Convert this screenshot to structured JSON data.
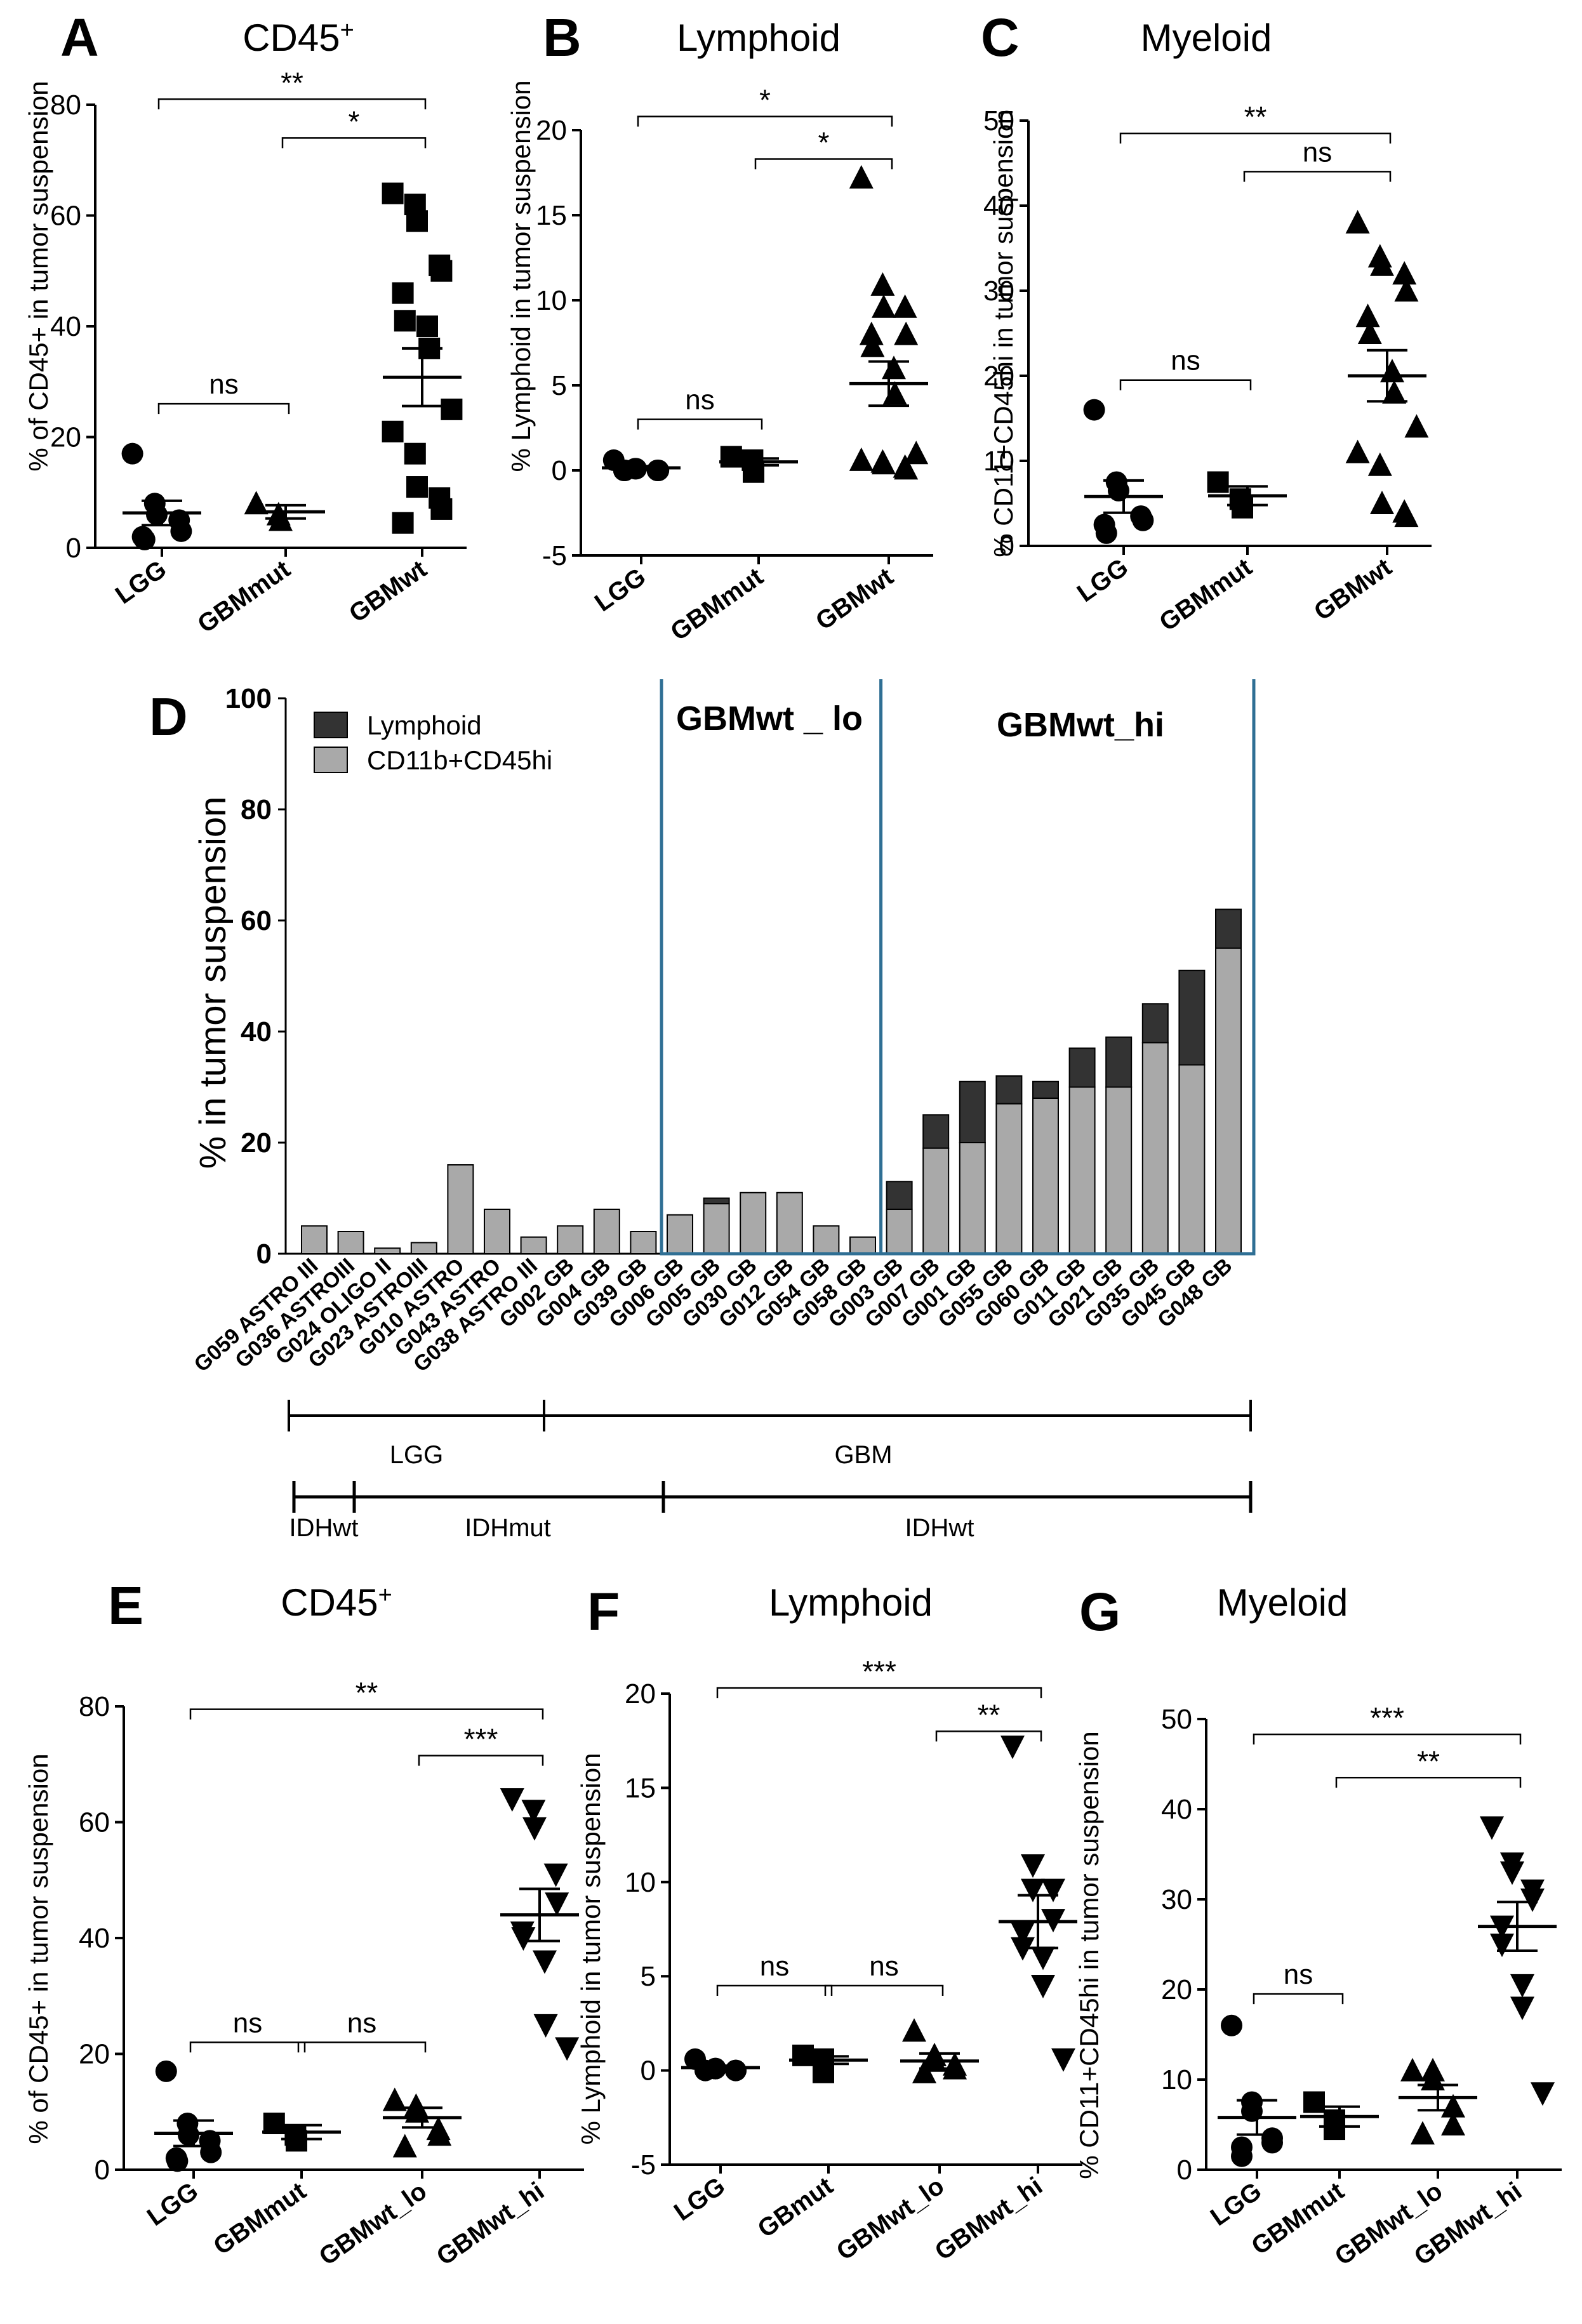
{
  "panels": [
    {
      "letter": "A",
      "title": "CD45",
      "title_sup": "+",
      "ylabel": "% of CD45+ in tumor suspension",
      "ylim": [
        0,
        80
      ],
      "yticks": [
        "0",
        "20",
        "40",
        "60",
        "80"
      ],
      "groups": [
        {
          "label": "LGG",
          "marker": "circle",
          "mean": 6.3,
          "sem": 2.2,
          "values": [
            17,
            8,
            6,
            5,
            3,
            2,
            1.5
          ]
        },
        {
          "label": "GBMmut",
          "marker": "triangle",
          "mean": 6.5,
          "sem": 1.2,
          "values": [
            8,
            6,
            5
          ]
        },
        {
          "label": "GBMwt",
          "marker": "square",
          "mean": 30.8,
          "sem": 5.2,
          "values": [
            64,
            62,
            59,
            51,
            50,
            46,
            41,
            40,
            36,
            25,
            21,
            17,
            11,
            9,
            7,
            4.5
          ]
        }
      ],
      "brackets": [
        {
          "from": 0,
          "to": 2,
          "at": 81,
          "label": "**"
        },
        {
          "from": 1,
          "to": 2,
          "at": 74,
          "label": "*"
        },
        {
          "from": 0,
          "to": 1,
          "at": 26,
          "label": "ns"
        }
      ]
    },
    {
      "letter": "B",
      "title": "Lymphoid",
      "title_sup": "",
      "ylabel": "% Lymphoid in tumor suspension",
      "ylim": [
        -5,
        20
      ],
      "yticks": [
        "-5",
        "0",
        "5",
        "10",
        "15",
        "20"
      ],
      "groups": [
        {
          "label": "LGG",
          "marker": "circle",
          "mean": 0.15,
          "sem": 0.1,
          "values": [
            0.6,
            0.1,
            0,
            0,
            0,
            0,
            0.1
          ]
        },
        {
          "label": "GBMmut",
          "marker": "square",
          "mean": 0.5,
          "sem": 0.2,
          "values": [
            0.8,
            0.6,
            -0.1
          ]
        },
        {
          "label": "GBMwt",
          "marker": "triangle",
          "mean": 5.1,
          "sem": 1.3,
          "values": [
            17.2,
            10.9,
            9.6,
            9.6,
            8,
            8,
            7.3,
            6,
            4.5,
            1,
            0.6,
            0.5,
            0.4,
            0.2,
            0.1
          ]
        }
      ],
      "brackets": [
        {
          "from": 0,
          "to": 2,
          "at": 20.8,
          "label": "*"
        },
        {
          "from": 1,
          "to": 2,
          "at": 18.3,
          "label": "*"
        },
        {
          "from": 0,
          "to": 1,
          "at": 3,
          "label": "ns"
        }
      ]
    },
    {
      "letter": "C",
      "title": "Myeloid",
      "title_sup": "",
      "ylabel": "% CD11+CD45hi in tumor suspension",
      "ylim": [
        0,
        50
      ],
      "yticks": [
        "0",
        "10",
        "20",
        "30",
        "40",
        "50"
      ],
      "groups": [
        {
          "label": "LGG",
          "marker": "circle",
          "mean": 5.8,
          "sem": 1.9,
          "values": [
            16,
            7.5,
            6.5,
            3.5,
            3,
            2.5,
            1.5
          ]
        },
        {
          "label": "GBMmut",
          "marker": "square",
          "mean": 5.9,
          "sem": 1.1,
          "values": [
            7.5,
            5.5,
            4.5
          ]
        },
        {
          "label": "GBMwt",
          "marker": "triangle",
          "mean": 20,
          "sem": 3,
          "values": [
            38,
            34,
            33,
            32,
            30,
            27,
            25,
            20.5,
            18,
            14,
            11,
            9.5,
            5,
            4,
            3.5
          ]
        }
      ],
      "brackets": [
        {
          "from": 0,
          "to": 2,
          "at": 48.5,
          "label": "**"
        },
        {
          "from": 1,
          "to": 2,
          "at": 44,
          "label": "ns"
        },
        {
          "from": 0,
          "to": 1,
          "at": 19.5,
          "label": "ns"
        }
      ]
    },
    {
      "letter": "E",
      "title": "CD45",
      "title_sup": "+",
      "ylabel": "% of CD45+ in tumor suspension",
      "ylim": [
        0,
        80
      ],
      "yticks": [
        "0",
        "20",
        "40",
        "60",
        "80"
      ],
      "groups": [
        {
          "label": "LGG",
          "marker": "circle",
          "mean": 6.3,
          "sem": 2.2,
          "values": [
            17,
            8,
            6,
            5,
            3,
            2,
            1.5
          ]
        },
        {
          "label": "GBMmut",
          "marker": "square",
          "mean": 6.5,
          "sem": 1.2,
          "values": [
            8,
            6,
            5
          ]
        },
        {
          "label": "GBMwt_lo",
          "marker": "triangle",
          "mean": 9,
          "sem": 1.7,
          "values": [
            12,
            11,
            10,
            7,
            6,
            4
          ]
        },
        {
          "label": "GBMwt_hi",
          "marker": "tri-down",
          "mean": 44,
          "sem": 4.5,
          "values": [
            64,
            62,
            59,
            51,
            46,
            41,
            40,
            36,
            25,
            21
          ]
        }
      ],
      "brackets": [
        {
          "from": 0,
          "to": 3,
          "at": 79.5,
          "label": "**"
        },
        {
          "from": 2,
          "to": 3,
          "at": 71.5,
          "label": "***"
        },
        {
          "from": 0,
          "to": 1,
          "at": 22,
          "label": "ns"
        },
        {
          "from": 1,
          "to": 2,
          "at": 22,
          "label": "ns"
        }
      ]
    },
    {
      "letter": "F",
      "title": "Lymphoid",
      "title_sup": "",
      "ylabel": "% Lymphoid in tumor suspension",
      "ylim": [
        -5,
        20
      ],
      "yticks": [
        "-5",
        "0",
        "5",
        "10",
        "15",
        "20"
      ],
      "groups": [
        {
          "label": "LGG",
          "marker": "circle",
          "mean": 0.15,
          "sem": 0.1,
          "values": [
            0.6,
            0.1,
            0,
            0,
            0,
            0,
            0.1
          ]
        },
        {
          "label": "GBmut",
          "marker": "square",
          "mean": 0.55,
          "sem": 0.2,
          "values": [
            0.8,
            0.6,
            -0.1
          ]
        },
        {
          "label": "GBMwt_lo",
          "marker": "triangle",
          "mean": 0.5,
          "sem": 0.4,
          "values": [
            2.1,
            0.8,
            0.5,
            0.3,
            0.1,
            -0.1
          ]
        },
        {
          "label": "GBMwt_hi",
          "marker": "tri-down",
          "mean": 7.9,
          "sem": 1.4,
          "values": [
            17.2,
            10.9,
            9.6,
            9.6,
            8,
            7.3,
            6.5,
            6,
            4.5,
            0.6
          ]
        }
      ],
      "brackets": [
        {
          "from": 0,
          "to": 3,
          "at": 20.3,
          "label": "***"
        },
        {
          "from": 2,
          "to": 3,
          "at": 18,
          "label": "**"
        },
        {
          "from": 0,
          "to": 1,
          "at": 4.5,
          "label": "ns"
        },
        {
          "from": 1,
          "to": 2,
          "at": 4.5,
          "label": "ns"
        }
      ]
    },
    {
      "letter": "G",
      "title": "Myeloid",
      "title_sup": "",
      "ylabel": "% CD11+CD45hi in tumor suspension",
      "ylim": [
        0,
        50
      ],
      "yticks": [
        "0",
        "10",
        "20",
        "30",
        "40",
        "50"
      ],
      "groups": [
        {
          "label": "LGG",
          "marker": "circle",
          "mean": 5.8,
          "sem": 1.9,
          "values": [
            16,
            7.5,
            6.5,
            3.5,
            3,
            2.5,
            1.5
          ]
        },
        {
          "label": "GBMmut",
          "marker": "square",
          "mean": 5.9,
          "sem": 1.1,
          "values": [
            7.5,
            5.5,
            4.5
          ]
        },
        {
          "label": "GBMwt_lo",
          "marker": "triangle",
          "mean": 8,
          "sem": 1.4,
          "values": [
            11,
            11,
            10,
            7,
            5,
            4
          ]
        },
        {
          "label": "GBMwt_hi",
          "marker": "tri-down",
          "mean": 27,
          "sem": 2.7,
          "values": [
            38,
            34,
            33,
            31,
            30,
            27,
            25,
            20.5,
            18,
            8.5
          ]
        }
      ],
      "brackets": [
        {
          "from": 0,
          "to": 3,
          "at": 48.3,
          "label": "***"
        },
        {
          "from": 1,
          "to": 3,
          "at": 43.5,
          "label": "**"
        },
        {
          "from": 0,
          "to": 1,
          "at": 19.5,
          "label": "ns"
        }
      ]
    }
  ],
  "panelD": {
    "letter": "D",
    "ylabel": "% in tumor suspension",
    "ylim": [
      0,
      100
    ],
    "yticks": [
      "0",
      "20",
      "40",
      "60",
      "80",
      "100"
    ],
    "legend": [
      {
        "label": "Lymphoid",
        "color": "#333333"
      },
      {
        "label": "CD11b+CD45hi",
        "color": "#a9a9a9"
      }
    ],
    "box_lo_label": "GBMwt _ lo",
    "box_hi_label": "GBMwt_hi",
    "box_color": "#2f6f94",
    "samples": [
      "G059 ASTRO III",
      "G036 ASTROIII",
      "G024 OLIGO II",
      "G023 ASTROIII",
      "G010 ASTRO",
      "G043 ASTRO",
      "G038 ASTRO III",
      "G002 GB",
      "G004 GB",
      "G039 GB",
      "G006 GB",
      "G005 GB",
      "G030 GB",
      "G012 GB",
      "G054 GB",
      "G058 GB",
      "G003 GB",
      "G007 GB",
      "G001 GB",
      "G055 GB",
      "G060 GB",
      "G011 GB",
      "G021 GB",
      "G035 GB",
      "G045 GB",
      "G048 GB"
    ],
    "myeloid": [
      5,
      4,
      1,
      2,
      16,
      8,
      3,
      5,
      8,
      4,
      7,
      9,
      11,
      11,
      5,
      3,
      8,
      19,
      20,
      27,
      28,
      30,
      30,
      38,
      34,
      55
    ],
    "total": [
      5,
      4,
      1,
      2,
      16,
      8,
      3,
      5,
      8,
      4,
      7,
      10,
      11,
      11,
      5,
      3,
      13,
      25,
      31,
      32,
      31,
      37,
      39,
      45,
      51,
      62
    ],
    "lo_start_index": 10,
    "hi_start_index": 16,
    "group_lgg": "LGG",
    "group_gbm": "GBM",
    "idh_wt_left": "IDHwt",
    "idh_mut": "IDHmut",
    "idh_wt_right": "IDHwt"
  }
}
